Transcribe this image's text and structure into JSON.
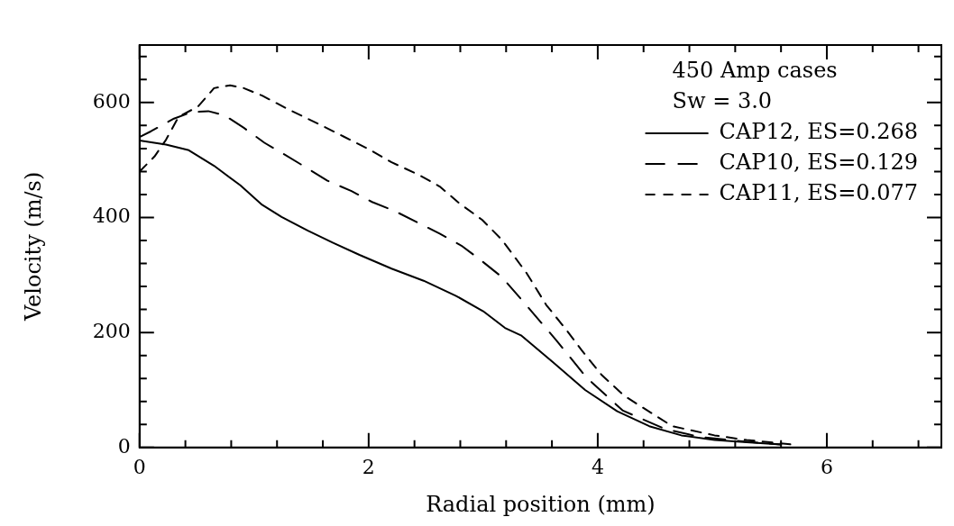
{
  "chart_data": {
    "type": "line",
    "xlabel": "Radial position (mm)",
    "ylabel": "Velocity (m/s)",
    "legend_title": "450 Amp cases",
    "annotations": [
      "Sw = 3.0"
    ],
    "xlim": [
      0,
      7
    ],
    "ylim": [
      0,
      700
    ],
    "xticks": [
      0,
      {
        "value": 0.4,
        "label": null
      },
      {
        "value": 0.8,
        "label": null
      },
      {
        "value": 1.2,
        "label": null
      },
      {
        "value": 1.6,
        "label": null
      },
      2,
      {
        "value": 2.4,
        "label": null
      },
      {
        "value": 2.8,
        "label": null
      },
      {
        "value": 3.2,
        "label": null
      },
      {
        "value": 3.6,
        "label": null
      },
      4,
      {
        "value": 4.4,
        "label": null
      },
      {
        "value": 4.8,
        "label": null
      },
      {
        "value": 5.2,
        "label": null
      },
      {
        "value": 5.6,
        "label": null
      },
      6,
      {
        "value": 6.4,
        "label": null
      },
      {
        "value": 6.8,
        "label": null
      }
    ],
    "yticks": [
      0,
      {
        "value": 40,
        "label": null
      },
      {
        "value": 80,
        "label": null
      },
      {
        "value": 120,
        "label": null
      },
      {
        "value": 160,
        "label": null
      },
      200,
      {
        "value": 240,
        "label": null
      },
      {
        "value": 280,
        "label": null
      },
      {
        "value": 320,
        "label": null
      },
      {
        "value": 360,
        "label": null
      },
      400,
      {
        "value": 440,
        "label": null
      },
      {
        "value": 480,
        "label": null
      },
      {
        "value": 520,
        "label": null
      },
      {
        "value": 560,
        "label": null
      },
      600,
      {
        "value": 640,
        "label": null
      },
      {
        "value": 680,
        "label": null
      }
    ],
    "grid": false,
    "legend": "top right",
    "marker": "none",
    "series": [
      {
        "name": "CAP12, ES=0.268",
        "color": "#000000",
        "line_style": "solid",
        "x": [
          0,
          0.23,
          0.43,
          0.65,
          0.88,
          1.07,
          1.24,
          1.47,
          1.69,
          1.92,
          2.2,
          2.48,
          2.76,
          3.0,
          3.19,
          3.33,
          3.61,
          3.89,
          4.17,
          4.45,
          4.73,
          5.02,
          5.3,
          5.6
        ],
        "values": [
          534,
          527,
          517,
          490,
          456,
          422,
          401,
          377,
          356,
          335,
          311,
          290,
          264,
          237,
          208,
          195,
          148,
          100,
          63,
          37,
          21,
          13,
          9,
          5
        ]
      },
      {
        "name": "CAP10, ES=0.129",
        "color": "#000000",
        "line_style": "dashed",
        "x": [
          0,
          0.1,
          0.3,
          0.45,
          0.6,
          0.74,
          0.91,
          1.09,
          1.27,
          1.47,
          1.64,
          1.85,
          2.03,
          2.23,
          2.44,
          2.62,
          2.81,
          2.99,
          3.16,
          3.37,
          3.64,
          3.9,
          4.22,
          4.59,
          4.9,
          5.24,
          5.6
        ],
        "values": [
          540,
          550,
          572,
          583,
          585,
          578,
          556,
          530,
          509,
          485,
          464,
          446,
          427,
          411,
          390,
          372,
          351,
          324,
          297,
          249,
          186,
          122,
          64,
          32,
          18,
          11,
          5
        ]
      },
      {
        "name": "CAP11, ES=0.077",
        "color": "#000000",
        "line_style": "dashed",
        "x": [
          0,
          0.13,
          0.23,
          0.34,
          0.51,
          0.65,
          0.79,
          0.91,
          1.07,
          1.3,
          1.55,
          1.78,
          2.0,
          2.2,
          2.43,
          2.62,
          2.79,
          2.99,
          3.16,
          3.38,
          3.55,
          3.72,
          3.86,
          4.03,
          4.23,
          4.42,
          4.65,
          5.02,
          5.3,
          5.7
        ],
        "values": [
          480,
          506,
          535,
          575,
          593,
          625,
          630,
          625,
          612,
          588,
          564,
          541,
          519,
          496,
          475,
          454,
          425,
          396,
          362,
          303,
          248,
          206,
          169,
          127,
          90,
          66,
          37,
          21,
          13,
          5
        ]
      }
    ]
  }
}
